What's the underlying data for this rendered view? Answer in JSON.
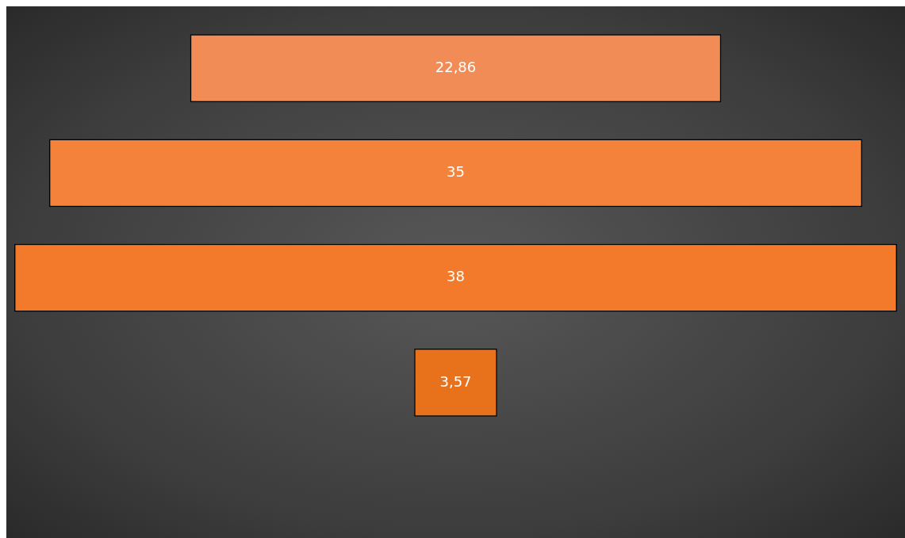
{
  "chart_data": {
    "type": "other",
    "categories": [
      null,
      null,
      null,
      null
    ],
    "values": [
      22.86,
      35,
      38,
      3.57
    ],
    "value_labels": [
      "22,86",
      "35",
      "38",
      "3,57"
    ],
    "colors": [
      "#f28c56",
      "#f4823a",
      "#f27a2a",
      "#e8721c"
    ]
  }
}
